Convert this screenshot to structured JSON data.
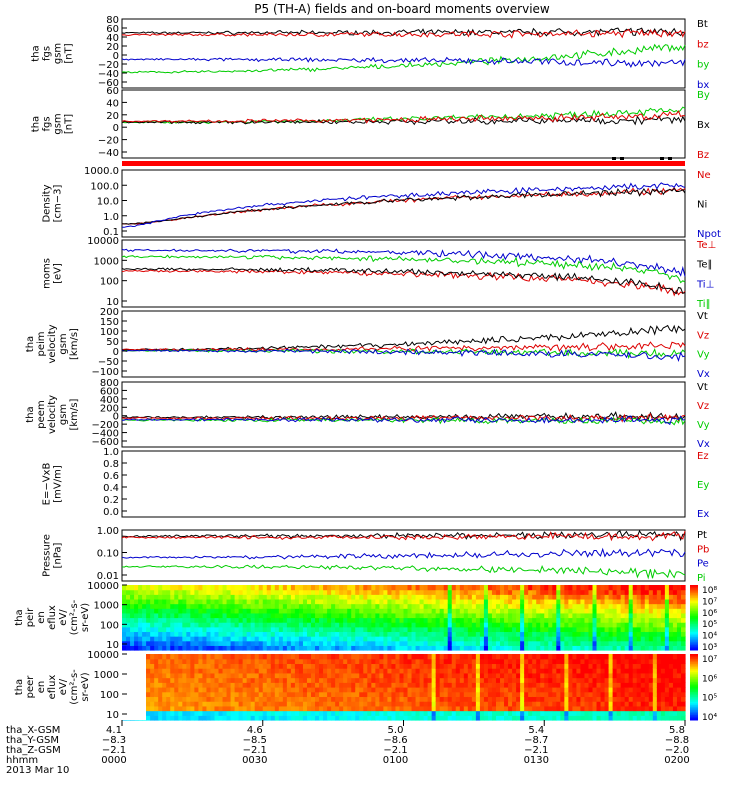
{
  "title": "P5 (TH-A) fields and on-board moments overview",
  "colors": {
    "black": "#000000",
    "red": "#dd0000",
    "green": "#00cc00",
    "blue": "#0000cc",
    "bar": "#ff0000"
  },
  "chart_data": [
    {
      "type": "line",
      "ylabel": [
        "tha",
        "fgs",
        "gsm",
        "[nT]"
      ],
      "ylim": [
        -60,
        80
      ],
      "yticks": [
        "80",
        "60",
        "40",
        "20",
        "0",
        "−20",
        "−40",
        "−60"
      ],
      "series": [
        {
          "name": "Bt",
          "color": "black",
          "y0": 52,
          "y1": 55
        },
        {
          "name": "bz",
          "color": "red",
          "y0": 48,
          "y1": 52
        },
        {
          "name": "by",
          "color": "green",
          "y0": -28,
          "y1": 25
        },
        {
          "name": "bx",
          "color": "blue",
          "y0": -2,
          "y1": -10
        }
      ]
    },
    {
      "type": "line",
      "ylabel": [
        "tha",
        "fgs",
        "gsm",
        "[nT]"
      ],
      "ylim": [
        -60,
        60
      ],
      "yticks": [
        "60",
        "40",
        "20",
        "0",
        "−20",
        "−40"
      ],
      "series": [
        {
          "name": "By",
          "color": "green",
          "y0": 3,
          "y1": 25
        },
        {
          "name": "Bx",
          "color": "black",
          "y0": 3,
          "y1": 8
        },
        {
          "name": "Bz",
          "color": "red",
          "y0": 5,
          "y1": 15
        }
      ]
    },
    {
      "type": "line",
      "log": true,
      "ylabel": [
        "Density",
        "[cm−3]"
      ],
      "ylim": [
        0.1,
        1000
      ],
      "yticks": [
        "1000.0",
        "100.0",
        "10.0",
        "1.0",
        "0.1"
      ],
      "series": [
        {
          "name": "Ne",
          "color": "red",
          "y0": 0.6,
          "y1": 60
        },
        {
          "name": "Ni",
          "color": "black",
          "y0": 0.6,
          "y1": 60
        },
        {
          "name": "Npot",
          "color": "blue",
          "y0": 0.4,
          "y1": 120
        }
      ]
    },
    {
      "type": "line",
      "log": true,
      "ylabel": [
        "moms",
        "[eV]"
      ],
      "ylim": [
        10,
        10000
      ],
      "yticks": [
        "10000",
        "1000",
        "100",
        "10"
      ],
      "series": [
        {
          "name": "Te⊥",
          "color": "red",
          "y0": 400,
          "y1": 35
        },
        {
          "name": "Te∥",
          "color": "black",
          "y0": 500,
          "y1": 45
        },
        {
          "name": "Ti⊥",
          "color": "blue",
          "y0": 3500,
          "y1": 300
        },
        {
          "name": "Ti∥",
          "color": "green",
          "y0": 1800,
          "y1": 180
        }
      ]
    },
    {
      "type": "line",
      "ylabel": [
        "tha",
        "peim",
        "velocity",
        "gsm",
        "[km/s]"
      ],
      "ylim": [
        -150,
        200
      ],
      "yticks": [
        "200",
        "150",
        "100",
        "50",
        "0",
        "−50",
        "−100"
      ],
      "series": [
        {
          "name": "Vt",
          "color": "black",
          "y0": -5,
          "y1": 110
        },
        {
          "name": "Vz",
          "color": "red",
          "y0": -5,
          "y1": 20
        },
        {
          "name": "Vy",
          "color": "green",
          "y0": -10,
          "y1": -30
        },
        {
          "name": "Vx",
          "color": "blue",
          "y0": -10,
          "y1": -40
        }
      ]
    },
    {
      "type": "line",
      "ylabel": [
        "tha",
        "peem",
        "velocity",
        "gsm",
        "[km/s]"
      ],
      "ylim": [
        -600,
        800
      ],
      "yticks": [
        "800",
        "600",
        "400",
        "200",
        "0",
        "−200",
        "−400",
        "−600"
      ],
      "series": [
        {
          "name": "Vt",
          "color": "black",
          "y0": 40,
          "y1": 60
        },
        {
          "name": "Vz",
          "color": "red",
          "y0": 20,
          "y1": 30
        },
        {
          "name": "Vy",
          "color": "green",
          "y0": -20,
          "y1": -30
        },
        {
          "name": "Vx",
          "color": "blue",
          "y0": -10,
          "y1": -20
        }
      ]
    },
    {
      "type": "line",
      "ylabel": [
        "E=−VxB",
        "[mV/m]"
      ],
      "ylim": [
        0,
        1
      ],
      "yticks": [
        "1.0",
        "0.8",
        "0.6",
        "0.4",
        "0.2",
        "0.0"
      ],
      "series": [
        {
          "name": "Ez",
          "color": "red"
        },
        {
          "name": "Ey",
          "color": "green"
        },
        {
          "name": "Ex",
          "color": "blue"
        }
      ]
    },
    {
      "type": "line",
      "log": true,
      "ylabel": [
        "Pressure",
        "[nPa]"
      ],
      "ylim": [
        0.01,
        3
      ],
      "yticks": [
        "1.00",
        "0.10",
        "0.01"
      ],
      "series": [
        {
          "name": "Pt",
          "color": "black",
          "y0": 1.5,
          "y1": 1.8
        },
        {
          "name": "Pb",
          "color": "red",
          "y0": 1.3,
          "y1": 1.6
        },
        {
          "name": "Pe",
          "color": "blue",
          "y0": 0.14,
          "y1": 0.25
        },
        {
          "name": "Pi",
          "color": "green",
          "y0": 0.05,
          "y1": 0.02
        }
      ]
    },
    {
      "type": "heatmap",
      "ylabel": [
        "tha",
        "peir",
        "en",
        "eflux",
        "eV/",
        "(cm²-s-",
        "sr-eV)"
      ],
      "yticks": [
        "10000",
        "1000",
        "100",
        "10"
      ],
      "colorbar": [
        "10⁸",
        "10⁷",
        "10⁶",
        "10⁵",
        "10⁴",
        "10³"
      ]
    },
    {
      "type": "heatmap",
      "ylabel": [
        "tha",
        "peer",
        "en",
        "eflux",
        "eV/",
        "(cm²-s-",
        "sr-eV)"
      ],
      "yticks": [
        "10000",
        "1000",
        "100",
        "10"
      ],
      "colorbar": [
        "10⁷",
        "10⁶",
        "10⁵",
        "10⁴"
      ]
    }
  ],
  "xaxis": {
    "row_labels": [
      "tha_X-GSM",
      "tha_Y-GSM",
      "tha_Z-GSM",
      "hhmm",
      "2013 Mar 10"
    ],
    "columns": [
      [
        "4.1",
        "−8.3",
        "−2.1",
        "0000"
      ],
      [
        "4.6",
        "−8.5",
        "−2.1",
        "0030"
      ],
      [
        "5.0",
        "−8.6",
        "−2.1",
        "0100"
      ],
      [
        "5.4",
        "−8.7",
        "−2.1",
        "0130"
      ],
      [
        "5.8",
        "−8.8",
        "−2.0",
        "0200"
      ]
    ]
  }
}
